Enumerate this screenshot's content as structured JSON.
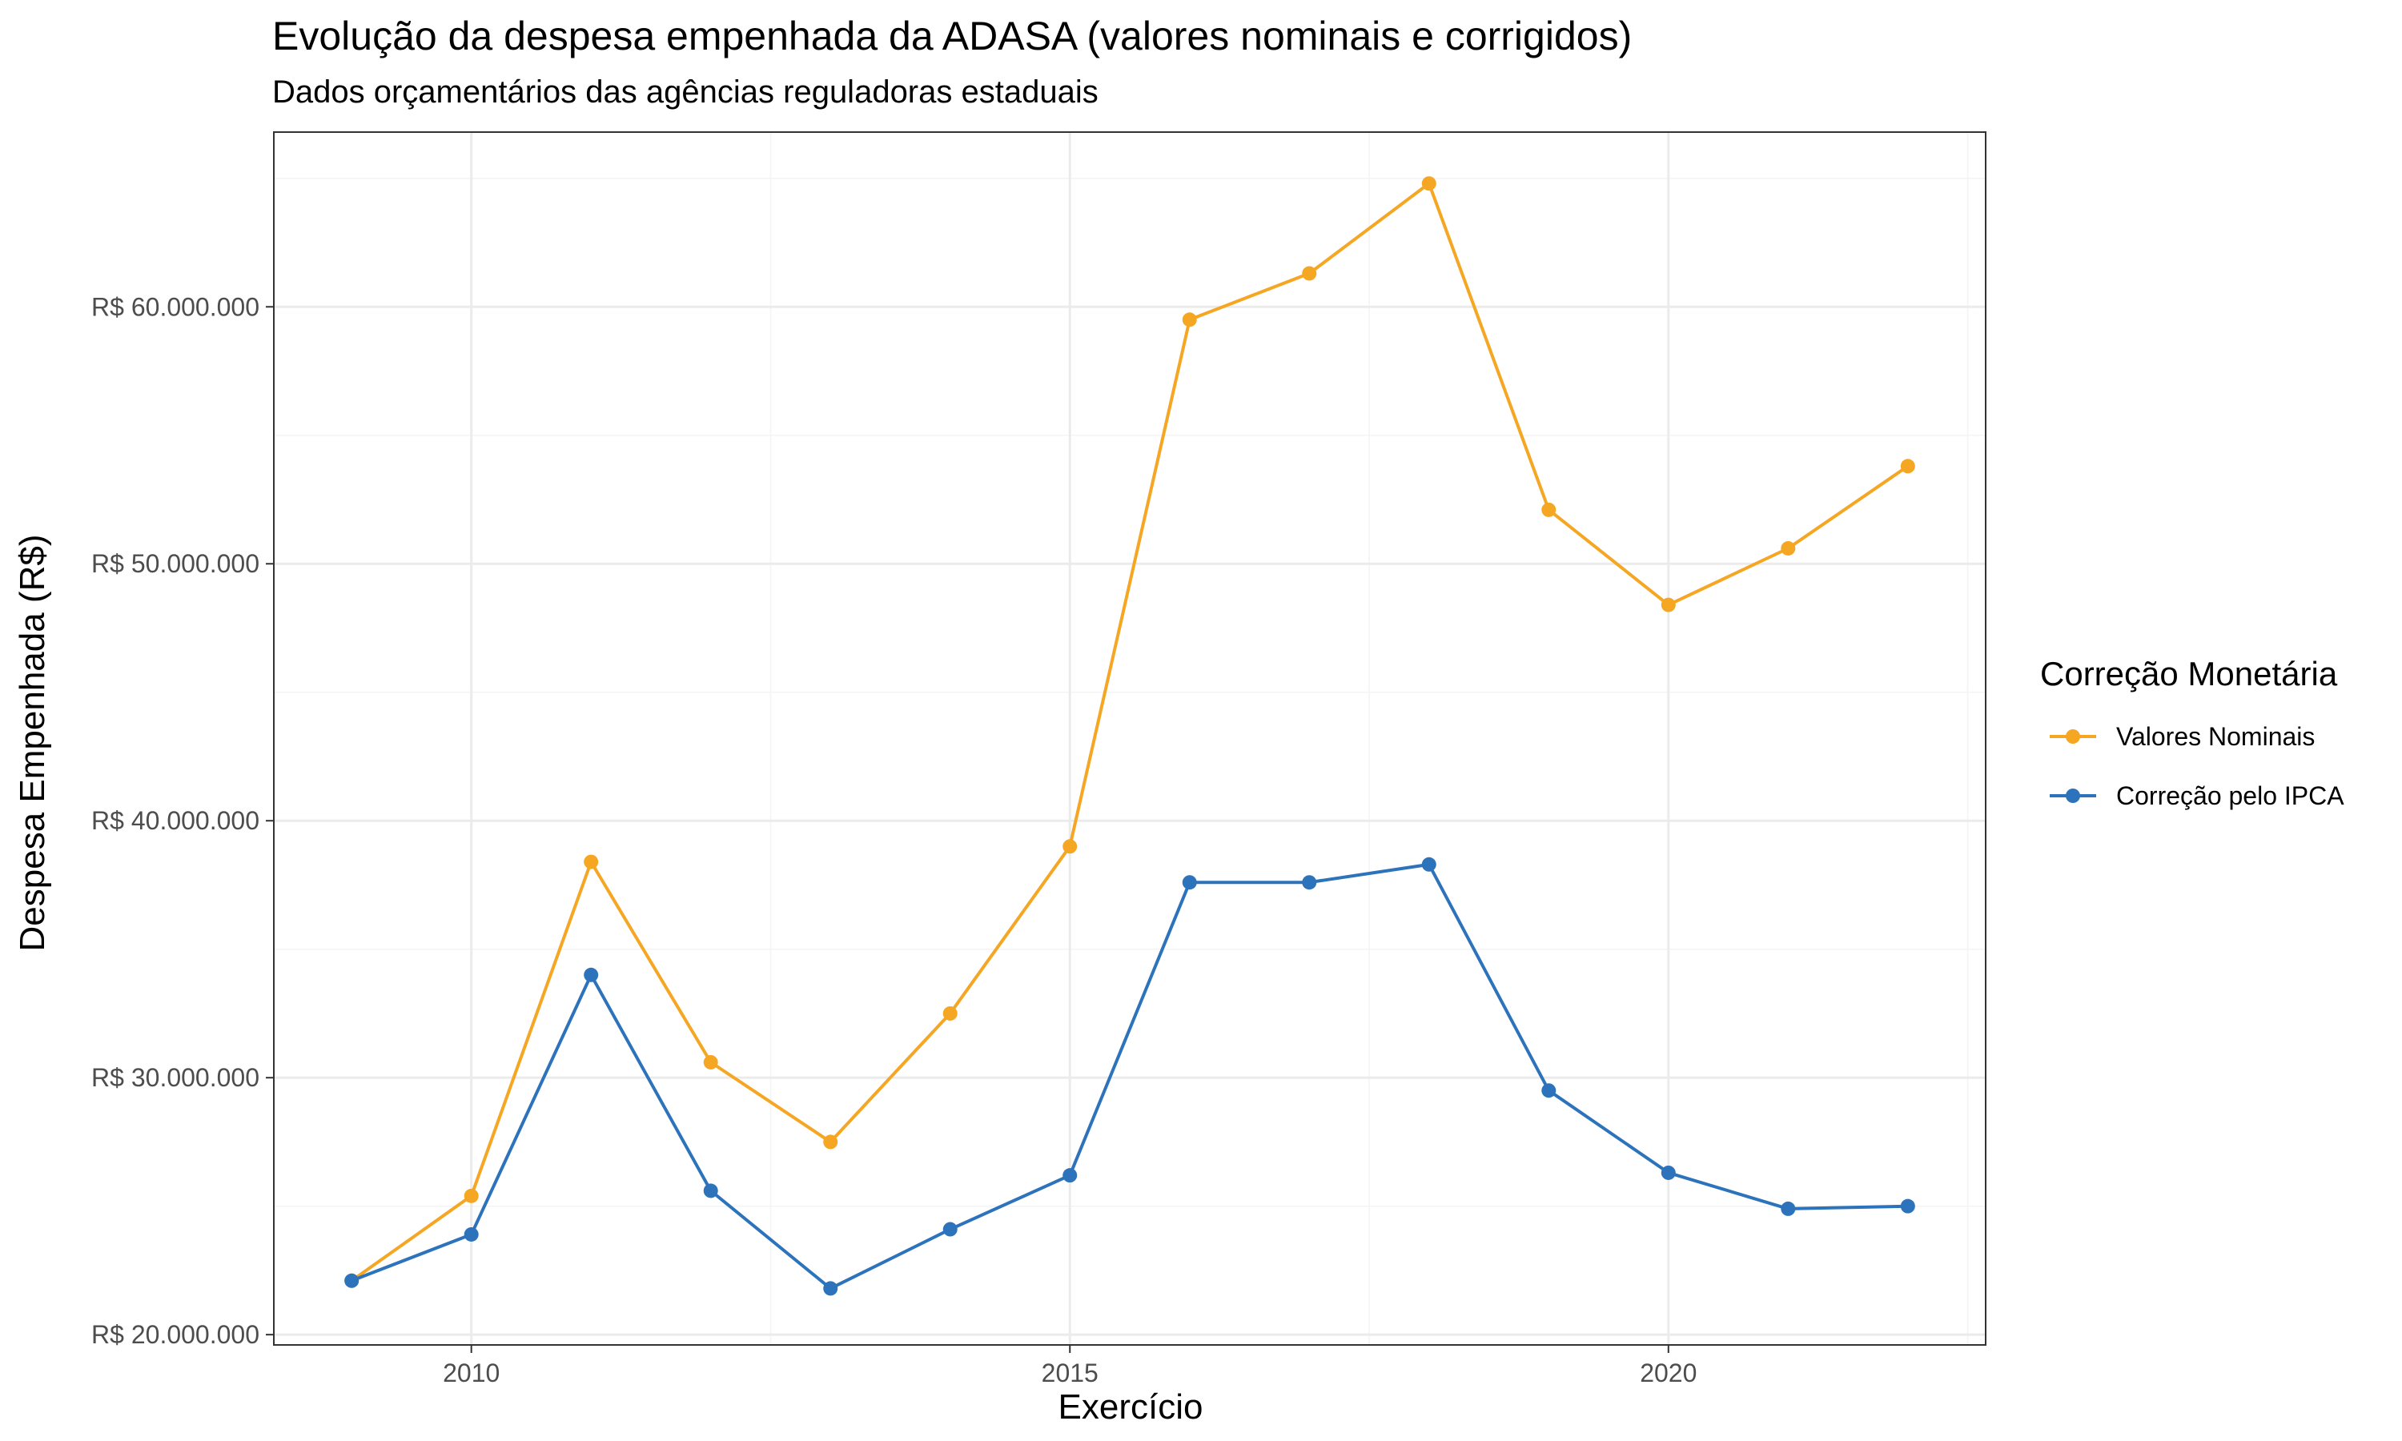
{
  "chart_data": {
    "type": "line",
    "title": "Evolução da despesa empenhada da ADASA (valores nominais e corrigidos)",
    "subtitle": "Dados orçamentários das agências reguladoras estaduais",
    "xlabel": "Exercício",
    "ylabel": "Despesa Empenhada (R$)",
    "x": [
      2009,
      2010,
      2011,
      2012,
      2013,
      2014,
      2015,
      2016,
      2017,
      2018,
      2019,
      2020,
      2021,
      2022
    ],
    "xlim": [
      2008.35,
      2022.65
    ],
    "ylim": [
      19600000,
      66800000
    ],
    "x_ticks": [
      2010,
      2015,
      2020
    ],
    "x_tick_labels": [
      "2010",
      "2015",
      "2020"
    ],
    "x_minor_ticks": [
      2012.5,
      2017.5,
      2022.5
    ],
    "y_ticks": [
      20000000,
      30000000,
      40000000,
      50000000,
      60000000
    ],
    "y_tick_labels": [
      "R$ 20.000.000",
      "R$ 30.000.000",
      "R$ 40.000.000",
      "R$ 50.000.000",
      "R$ 60.000.000"
    ],
    "y_minor_ticks": [
      25000000,
      35000000,
      45000000,
      55000000,
      65000000
    ],
    "grid": true,
    "legend": {
      "title": "Correção Monetária",
      "position": "right"
    },
    "series": [
      {
        "name": "Valores Nominais",
        "color": "#F5A623",
        "values": [
          22100000,
          25400000,
          38400000,
          30600000,
          27500000,
          32500000,
          39000000,
          59500000,
          61300000,
          64800000,
          52100000,
          48400000,
          50600000,
          53800000
        ]
      },
      {
        "name": "Correção pelo IPCA",
        "color": "#2C73BC",
        "values": [
          22100000,
          23900000,
          34000000,
          25600000,
          21800000,
          24100000,
          26200000,
          37600000,
          37600000,
          38300000,
          29500000,
          26300000,
          24900000,
          25000000
        ]
      }
    ]
  }
}
